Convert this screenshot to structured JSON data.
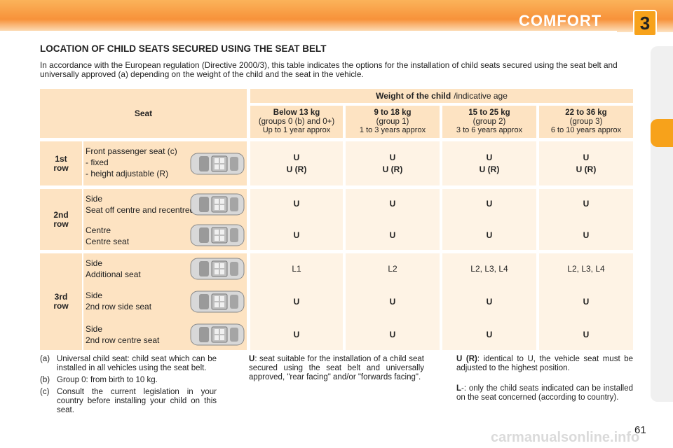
{
  "header": {
    "title": "COMFORT",
    "chapter": "3"
  },
  "heading": "LOCATION OF CHILD SEATS SECURED USING THE SEAT BELT",
  "intro": "In accordance with the European regulation (Directive 2000/3), this table indicates the options for the installation of child seats secured using the seat belt and universally approved (a) depending on the weight of the child and the seat in the vehicle.",
  "table": {
    "seat_header": "Seat",
    "weight_header": "Weight of the child",
    "weight_note": "/indicative age",
    "groups": [
      {
        "weight": "Below 13 kg",
        "group": "(groups 0 (b) and 0+)",
        "age": "Up to 1 year approx"
      },
      {
        "weight": "9 to 18 kg",
        "group": "(group 1)",
        "age": "1 to 3 years approx"
      },
      {
        "weight": "15 to 25 kg",
        "group": "(group 2)",
        "age": "3 to 6 years approx"
      },
      {
        "weight": "22 to 36 kg",
        "group": "(group 3)",
        "age": "6 to 10 years approx"
      }
    ],
    "rows": [
      {
        "label": "1st row",
        "positions": [
          {
            "lines": [
              "Front passenger seat (c)",
              "- fixed",
              "- height adjustable (R)"
            ],
            "values": [
              [
                "U",
                "U (R)"
              ],
              [
                "U",
                "U (R)"
              ],
              [
                "U",
                "U (R)"
              ],
              [
                "U",
                "U (R)"
              ]
            ]
          }
        ]
      },
      {
        "label": "2nd row",
        "positions": [
          {
            "lines": [
              "Side",
              "Seat off centre and recentred"
            ],
            "values": [
              [
                "U"
              ],
              [
                "U"
              ],
              [
                "U"
              ],
              [
                "U"
              ]
            ]
          },
          {
            "lines": [
              "Centre",
              "Centre seat"
            ],
            "values": [
              [
                "U"
              ],
              [
                "U"
              ],
              [
                "U"
              ],
              [
                "U"
              ]
            ]
          }
        ]
      },
      {
        "label": "3rd row",
        "positions": [
          {
            "lines": [
              "Side",
              "Additional seat"
            ],
            "values": [
              [
                "L1"
              ],
              [
                "L2"
              ],
              [
                "L2, L3, L4"
              ],
              [
                "L2, L3, L4"
              ]
            ]
          },
          {
            "lines": [
              "Side",
              "2nd row side seat"
            ],
            "values": [
              [
                "U"
              ],
              [
                "U"
              ],
              [
                "U"
              ],
              [
                "U"
              ]
            ]
          },
          {
            "lines": [
              "Side",
              "2nd row centre seat"
            ],
            "values": [
              [
                "U"
              ],
              [
                "U"
              ],
              [
                "U"
              ],
              [
                "U"
              ]
            ]
          }
        ]
      }
    ]
  },
  "notes": [
    {
      "key": "(a)",
      "text": "Universal child seat: child seat which can be installed in all vehicles using the seat belt."
    },
    {
      "key": "(b)",
      "text": "Group 0: from birth to 10 kg."
    },
    {
      "key": "(c)",
      "text": "Consult the current legislation in your country before installing your child on this seat."
    }
  ],
  "definitions": [
    {
      "term": "U",
      "text": ": seat suitable for the installation of a child seat secured using the seat belt and universally approved, \"rear facing\" and/or \"forwards facing\"."
    },
    {
      "term": "U (R)",
      "text": ": identical to U, the vehicle seat must be adjusted to the highest position."
    },
    {
      "term": "L",
      "text": "-: only the child seats indicated can be installed on the seat concerned (according to country)."
    }
  ],
  "page_number": "61",
  "watermark": "carmanualsonline.info"
}
